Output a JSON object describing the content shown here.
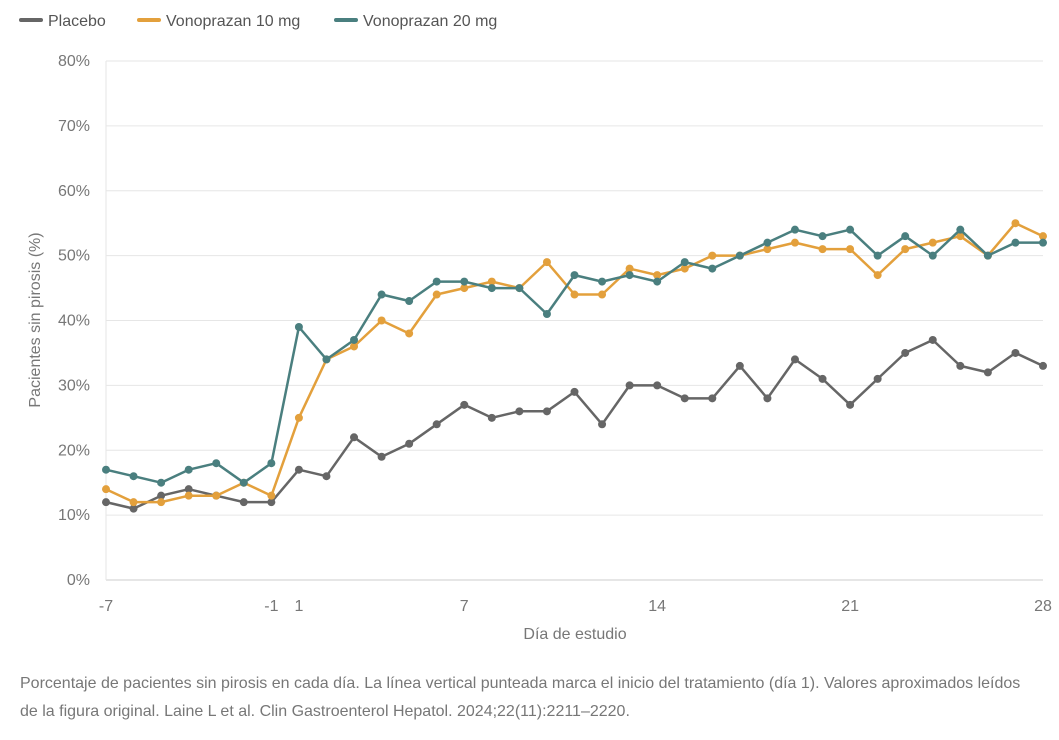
{
  "chart_data": {
    "type": "line",
    "xlabel": "Día de estudio",
    "ylabel": "Pacientes sin pirosis (%)",
    "ylim": [
      0,
      80
    ],
    "y_ticks": [
      "0%",
      "10%",
      "20%",
      "30%",
      "40%",
      "50%",
      "60%",
      "70%",
      "80%"
    ],
    "x_ticks": [
      "-7",
      "-1",
      "1",
      "7",
      "14",
      "21",
      "28"
    ],
    "legend_position": "top-left",
    "grid": true,
    "x": [
      -7,
      -6,
      -5,
      -4,
      -3,
      -2,
      -1,
      1,
      2,
      3,
      4,
      5,
      6,
      7,
      8,
      9,
      10,
      11,
      12,
      13,
      14,
      15,
      16,
      17,
      18,
      19,
      20,
      21,
      22,
      23,
      24,
      25,
      26,
      27,
      28
    ],
    "series": [
      {
        "name": "Placebo",
        "color": "#666666",
        "values": [
          12,
          11,
          13,
          14,
          13,
          12,
          12,
          17,
          16,
          22,
          19,
          21,
          24,
          27,
          25,
          26,
          26,
          29,
          24,
          30,
          30,
          28,
          28,
          33,
          28,
          34,
          31,
          27,
          31,
          35,
          37,
          33,
          32,
          35,
          33
        ]
      },
      {
        "name": "Vonoprazan 10 mg",
        "color": "#E3A03C",
        "values": [
          14,
          12,
          12,
          13,
          13,
          15,
          13,
          25,
          34,
          36,
          40,
          38,
          44,
          45,
          46,
          45,
          49,
          44,
          44,
          48,
          47,
          48,
          50,
          50,
          51,
          52,
          51,
          51,
          47,
          51,
          52,
          53,
          50,
          55,
          53
        ]
      },
      {
        "name": "Vonoprazan 20 mg",
        "color": "#4A7F7F",
        "values": [
          17,
          16,
          15,
          17,
          18,
          15,
          18,
          39,
          34,
          37,
          44,
          43,
          46,
          46,
          45,
          45,
          41,
          47,
          46,
          47,
          46,
          49,
          48,
          50,
          52,
          54,
          53,
          54,
          50,
          53,
          50,
          54,
          50,
          52,
          52
        ]
      }
    ]
  },
  "caption": "Porcentaje de pacientes sin pirosis en cada día. La línea vertical punteada marca el inicio del tratamiento (día 1). Valores aproximados leídos de la figura original. Laine L et al. Clin Gastroenterol Hepatol. 2024;22(11):2211–2220."
}
